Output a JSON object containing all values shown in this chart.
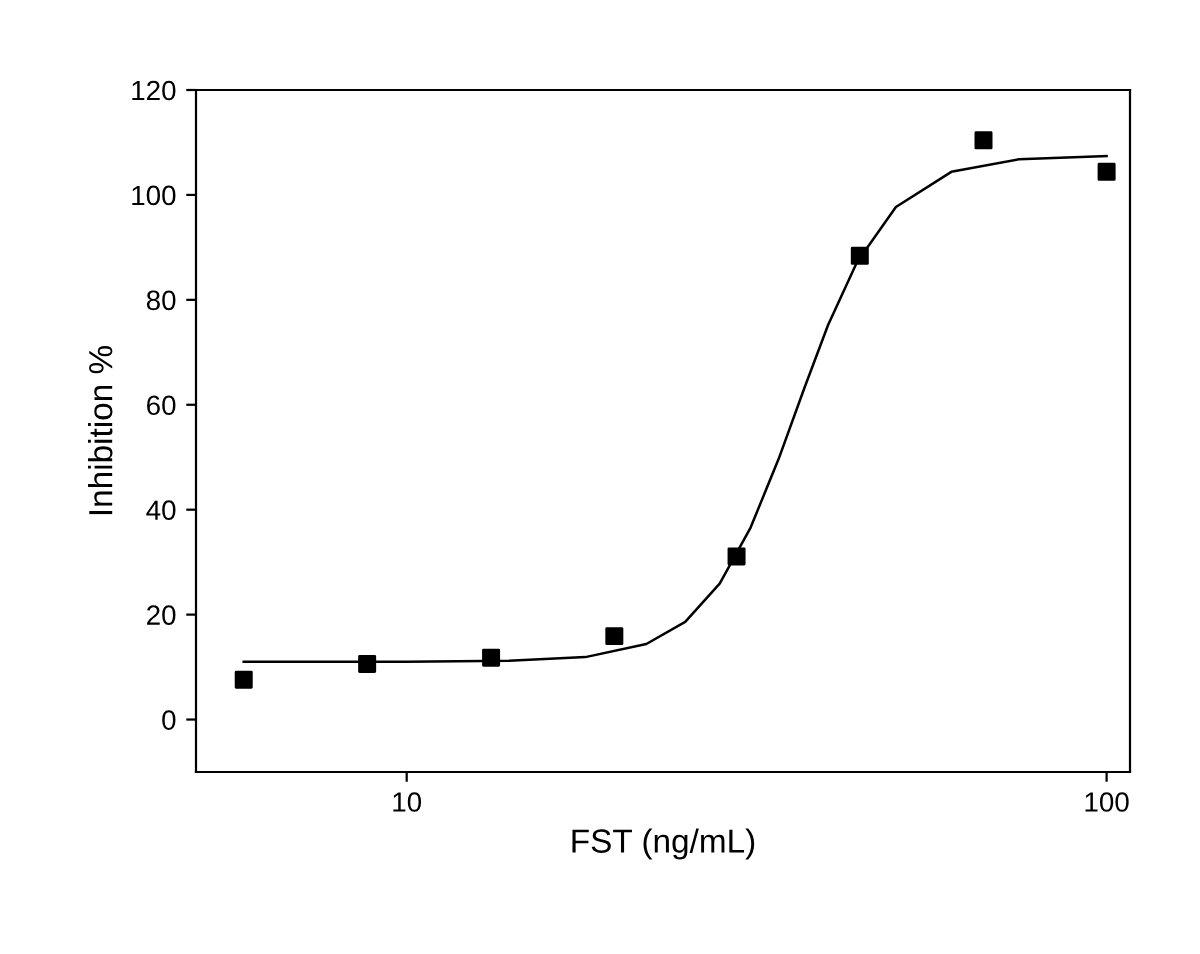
{
  "chart_data": {
    "type": "scatter",
    "xlabel": "FST (ng/mL)",
    "ylabel": "Inhibition %",
    "log": "x",
    "xlim": [
      5,
      108
    ],
    "xticks": [
      10,
      100
    ],
    "ylim": [
      -10,
      120
    ],
    "yticks": [
      0,
      20,
      40,
      60,
      80,
      100,
      120
    ],
    "grid": false,
    "legend": false,
    "series": [
      {
        "type": "scatter",
        "color": "#000000",
        "marker": "square",
        "x": [
          5.85,
          8.78,
          13.2,
          19.8,
          29.6,
          44.4,
          66.7,
          100
        ],
        "values": [
          7.6,
          10.6,
          11.8,
          15.9,
          31.1,
          88.4,
          110.4,
          104.4
        ]
      },
      {
        "type": "line",
        "color": "#000000",
        "marker": "none",
        "line_style": "solid",
        "x": [
          5.85,
          10,
          14,
          18,
          22,
          25,
          28,
          31,
          34,
          37,
          40,
          44,
          50,
          60,
          75,
          100
        ],
        "values": [
          11.0,
          11.0,
          11.2,
          11.9,
          14.4,
          18.6,
          25.9,
          36.6,
          49.7,
          63.2,
          75.2,
          87.2,
          97.7,
          104.4,
          106.8,
          107.4
        ]
      }
    ]
  }
}
